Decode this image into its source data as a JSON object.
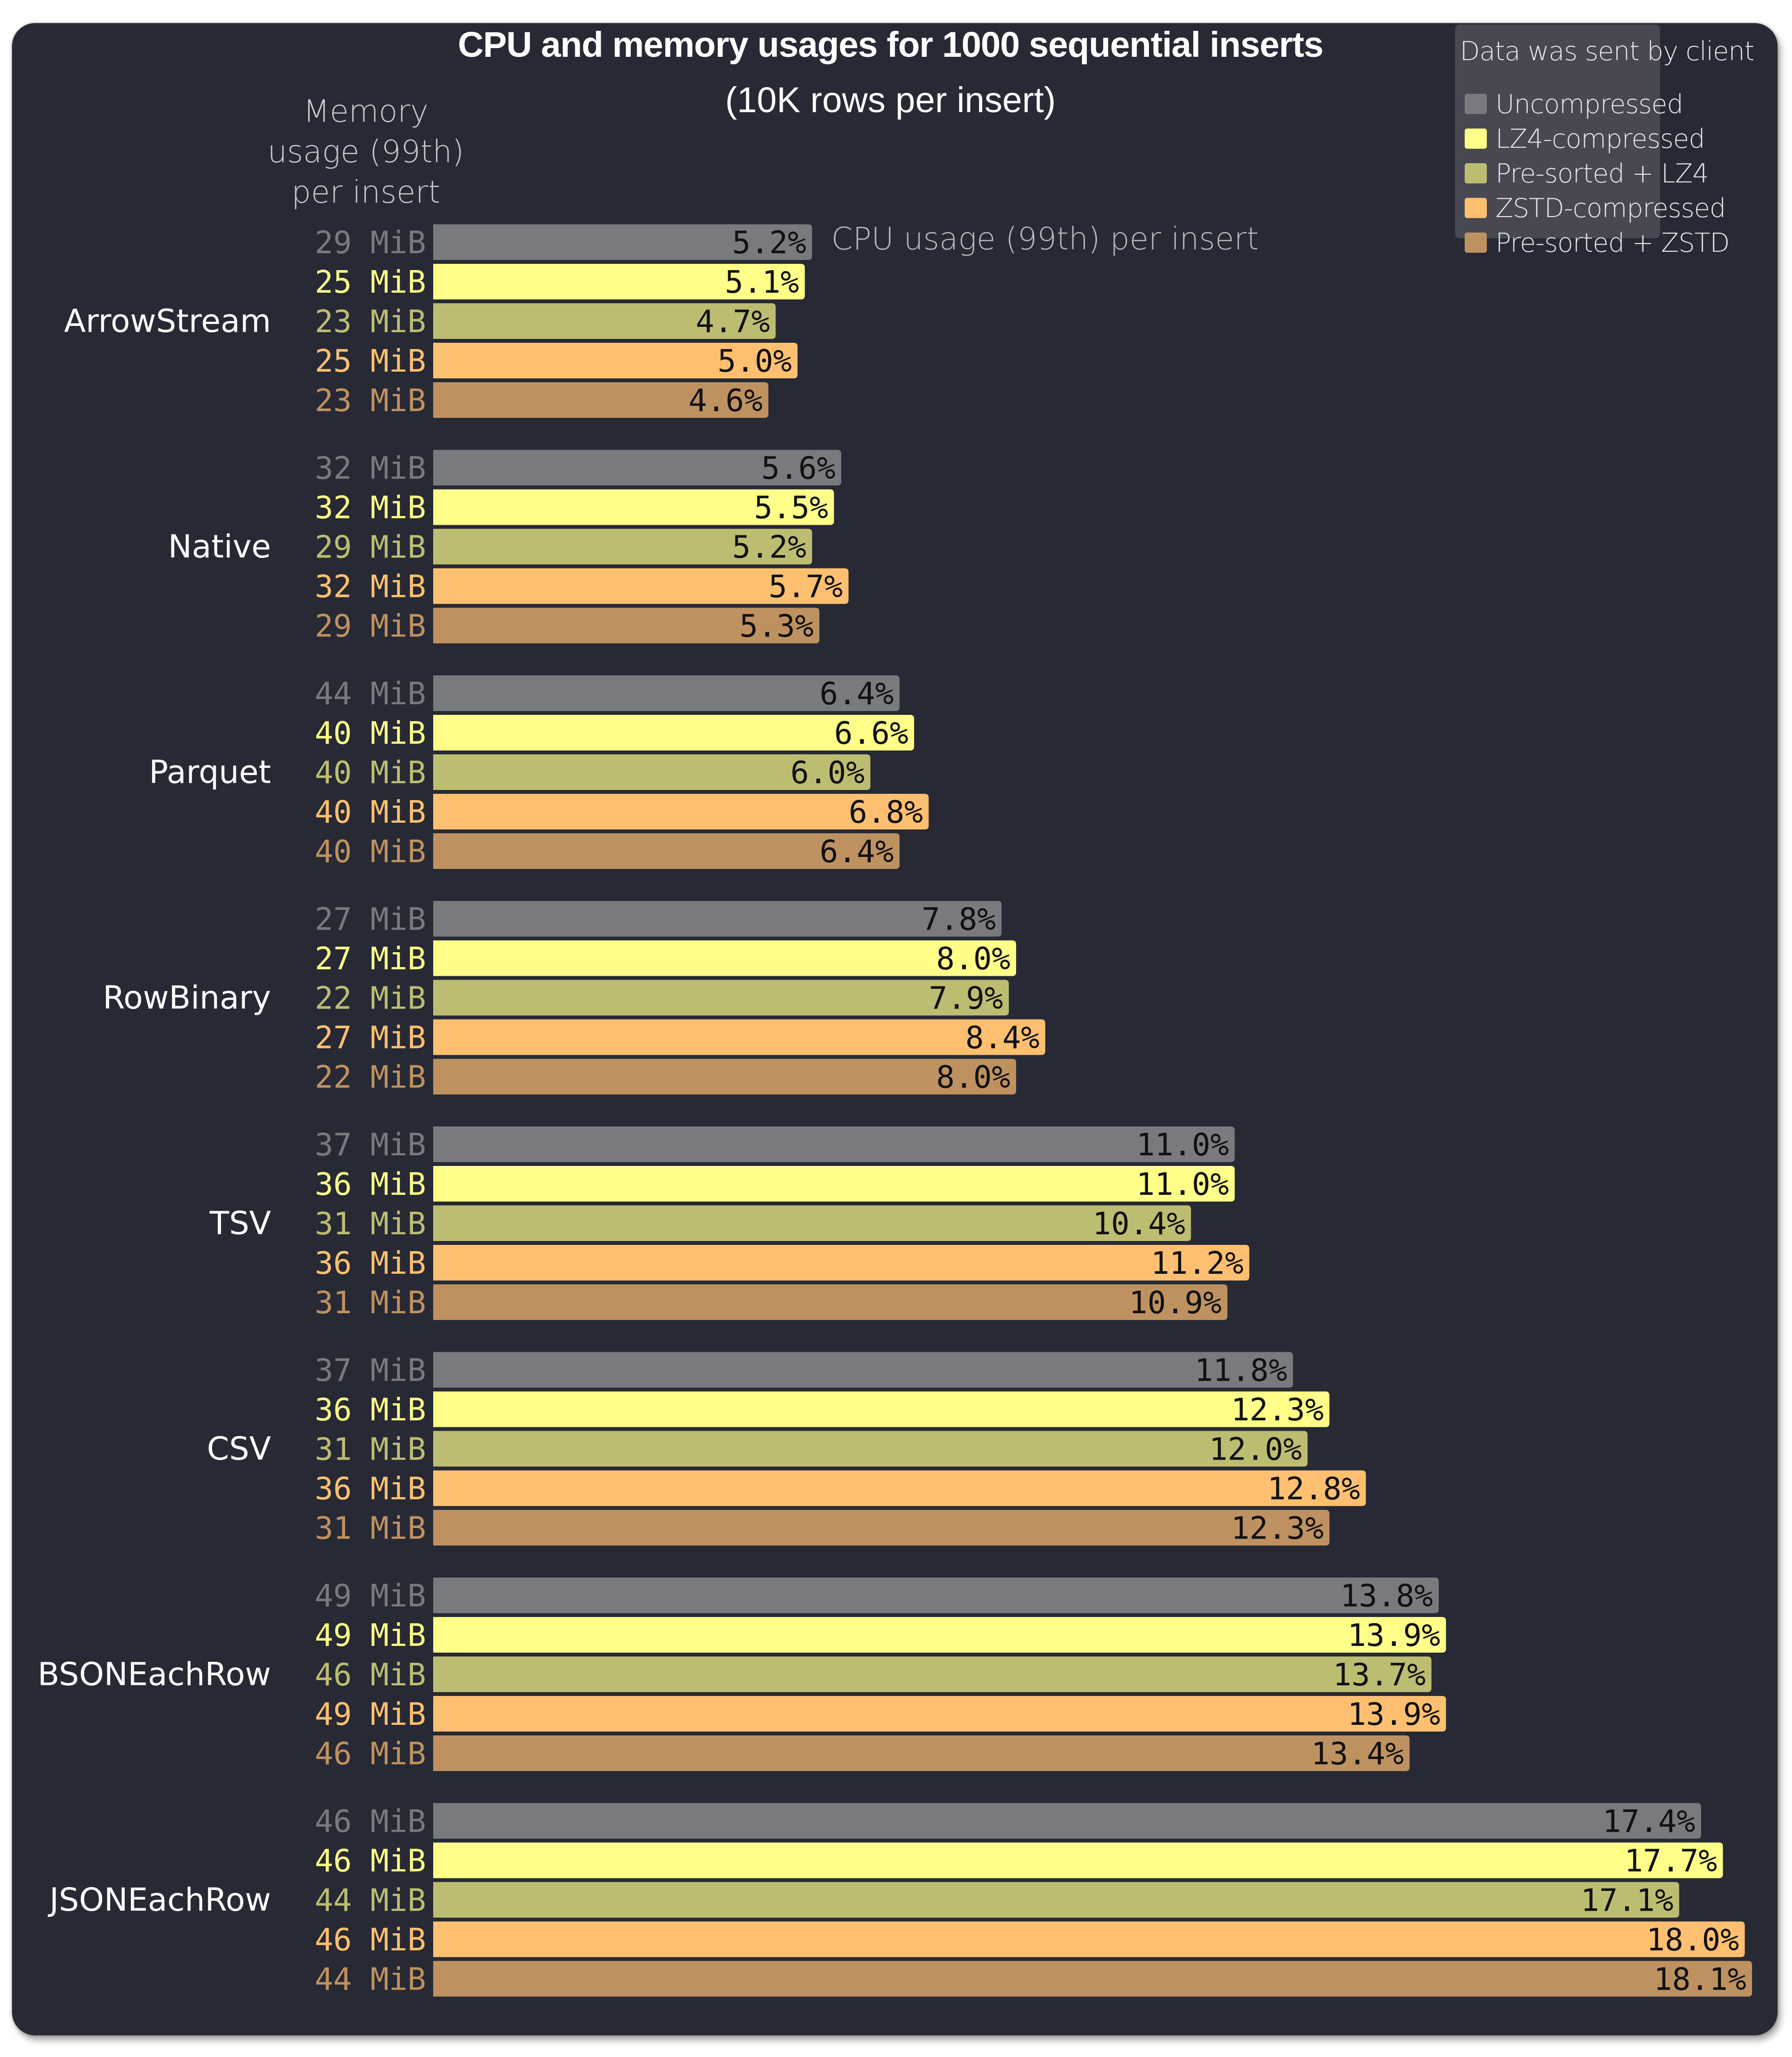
{
  "chart_data": {
    "type": "bar",
    "orientation": "horizontal",
    "title": "CPU and memory usages for 1000 sequential inserts",
    "subtitle": "(10K rows per insert)",
    "xlabel": "CPU usage (99th) per insert",
    "ylabel": "Memory usage (99th) per insert",
    "memory_header_lines": [
      "Memory",
      "usage (99th)",
      "per insert"
    ],
    "xlim": [
      0,
      18.1
    ],
    "grid": false,
    "legend": {
      "title": "Data was sent by client",
      "position": "top-right"
    },
    "value_suffix": "%",
    "memory_unit": "MiB",
    "categories": [
      "ArrowStream",
      "Native",
      "Parquet",
      "RowBinary",
      "TSV",
      "CSV",
      "BSONEachRow",
      "JSONEachRow"
    ],
    "series": [
      {
        "name": "Uncompressed",
        "color": "#797a7e",
        "cpu": [
          5.2,
          5.6,
          6.4,
          7.8,
          11.0,
          11.8,
          13.8,
          17.4
        ],
        "memory_mib": [
          29,
          32,
          44,
          27,
          37,
          37,
          49,
          46
        ]
      },
      {
        "name": "LZ4-compressed",
        "color": "#fefe88",
        "cpu": [
          5.1,
          5.5,
          6.6,
          8.0,
          11.0,
          12.3,
          13.9,
          17.7
        ],
        "memory_mib": [
          25,
          32,
          40,
          27,
          36,
          36,
          49,
          46
        ]
      },
      {
        "name": "Pre-sorted + LZ4",
        "color": "#bdbd72",
        "cpu": [
          4.7,
          5.2,
          6.0,
          7.9,
          10.4,
          12.0,
          13.7,
          17.1
        ],
        "memory_mib": [
          23,
          29,
          40,
          22,
          31,
          31,
          46,
          44
        ]
      },
      {
        "name": "ZSTD-compressed",
        "color": "#fec070",
        "cpu": [
          5.0,
          5.7,
          6.8,
          8.4,
          11.2,
          12.8,
          13.9,
          18.0
        ],
        "memory_mib": [
          25,
          32,
          40,
          27,
          36,
          36,
          49,
          46
        ]
      },
      {
        "name": "Pre-sorted + ZSTD",
        "color": "#be9260",
        "cpu": [
          4.6,
          5.3,
          6.4,
          8.0,
          10.9,
          12.3,
          13.4,
          18.1
        ],
        "memory_mib": [
          23,
          29,
          40,
          22,
          31,
          31,
          46,
          44
        ]
      }
    ]
  }
}
